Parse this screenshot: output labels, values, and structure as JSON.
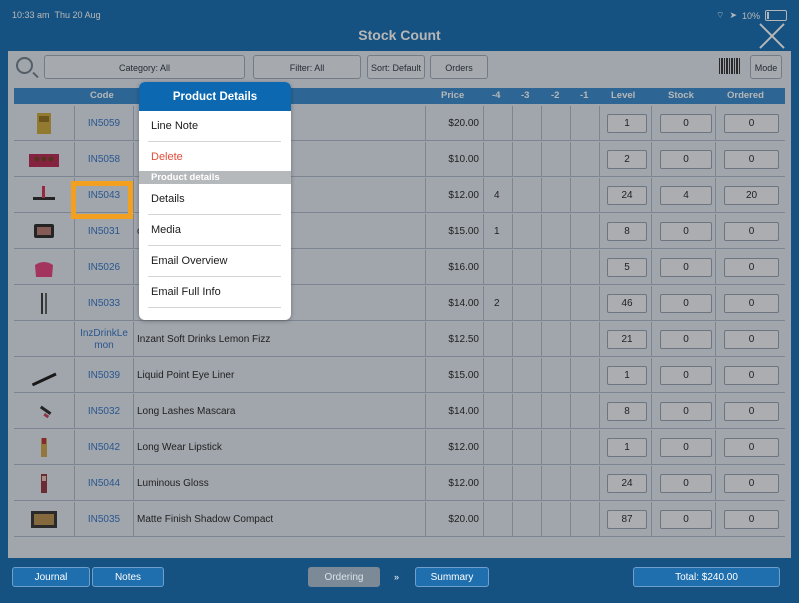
{
  "status": {
    "time": "10:33 am",
    "date": "Thu 20 Aug",
    "battery": "10%"
  },
  "title": "Stock Count",
  "toolbar": {
    "category": "Category: All",
    "filter": "Filter: All",
    "sort": "Sort: Default",
    "orders": "Orders",
    "mode": "Mode"
  },
  "columns": {
    "code": "Code",
    "price": "Price",
    "m4": "-4",
    "m3": "-3",
    "m2": "-2",
    "m1": "-1",
    "level": "Level",
    "stock": "Stock",
    "ordered": "Ordered"
  },
  "rows": [
    {
      "code": "IN5059",
      "desc": "",
      "price": "$20.00",
      "m4": "",
      "level": "1",
      "stock": "0",
      "ordered": "0"
    },
    {
      "code": "IN5058",
      "desc": "",
      "price": "$10.00",
      "m4": "",
      "level": "2",
      "stock": "0",
      "ordered": "0"
    },
    {
      "code": "IN5043",
      "desc": "",
      "price": "$12.00",
      "m4": "4",
      "level": "24",
      "stock": "4",
      "ordered": "20"
    },
    {
      "code": "IN5031",
      "desc": "ct",
      "price": "$15.00",
      "m4": "1",
      "level": "8",
      "stock": "0",
      "ordered": "0"
    },
    {
      "code": "IN5026",
      "desc": "",
      "price": "$16.00",
      "m4": "",
      "level": "5",
      "stock": "0",
      "ordered": "0"
    },
    {
      "code": "IN5033",
      "desc": "",
      "price": "$14.00",
      "m4": "2",
      "level": "46",
      "stock": "0",
      "ordered": "0"
    },
    {
      "code": "InzDrinkLemon",
      "desc": "Inzant Soft Drinks Lemon Fizz",
      "price": "$12.50",
      "m4": "",
      "level": "21",
      "stock": "0",
      "ordered": "0"
    },
    {
      "code": "IN5039",
      "desc": "Liquid Point Eye Liner",
      "price": "$15.00",
      "m4": "",
      "level": "1",
      "stock": "0",
      "ordered": "0"
    },
    {
      "code": "IN5032",
      "desc": "Long Lashes Mascara",
      "price": "$14.00",
      "m4": "",
      "level": "8",
      "stock": "0",
      "ordered": "0"
    },
    {
      "code": "IN5042",
      "desc": "Long Wear Lipstick",
      "price": "$12.00",
      "m4": "",
      "level": "1",
      "stock": "0",
      "ordered": "0"
    },
    {
      "code": "IN5044",
      "desc": "Luminous Gloss",
      "price": "$12.00",
      "m4": "",
      "level": "24",
      "stock": "0",
      "ordered": "0"
    },
    {
      "code": "IN5035",
      "desc": "Matte Finish Shadow Compact",
      "price": "$20.00",
      "m4": "",
      "level": "87",
      "stock": "0",
      "ordered": "0"
    }
  ],
  "popup": {
    "title": "Product Details",
    "line_note": "Line Note",
    "delete": "Delete",
    "section": "Product details",
    "details": "Details",
    "media": "Media",
    "email_overview": "Email Overview",
    "email_full": "Email Full Info"
  },
  "bottom": {
    "journal": "Journal",
    "notes": "Notes",
    "ordering": "Ordering",
    "arrow": "»",
    "summary": "Summary",
    "total": "Total: $240.00"
  }
}
